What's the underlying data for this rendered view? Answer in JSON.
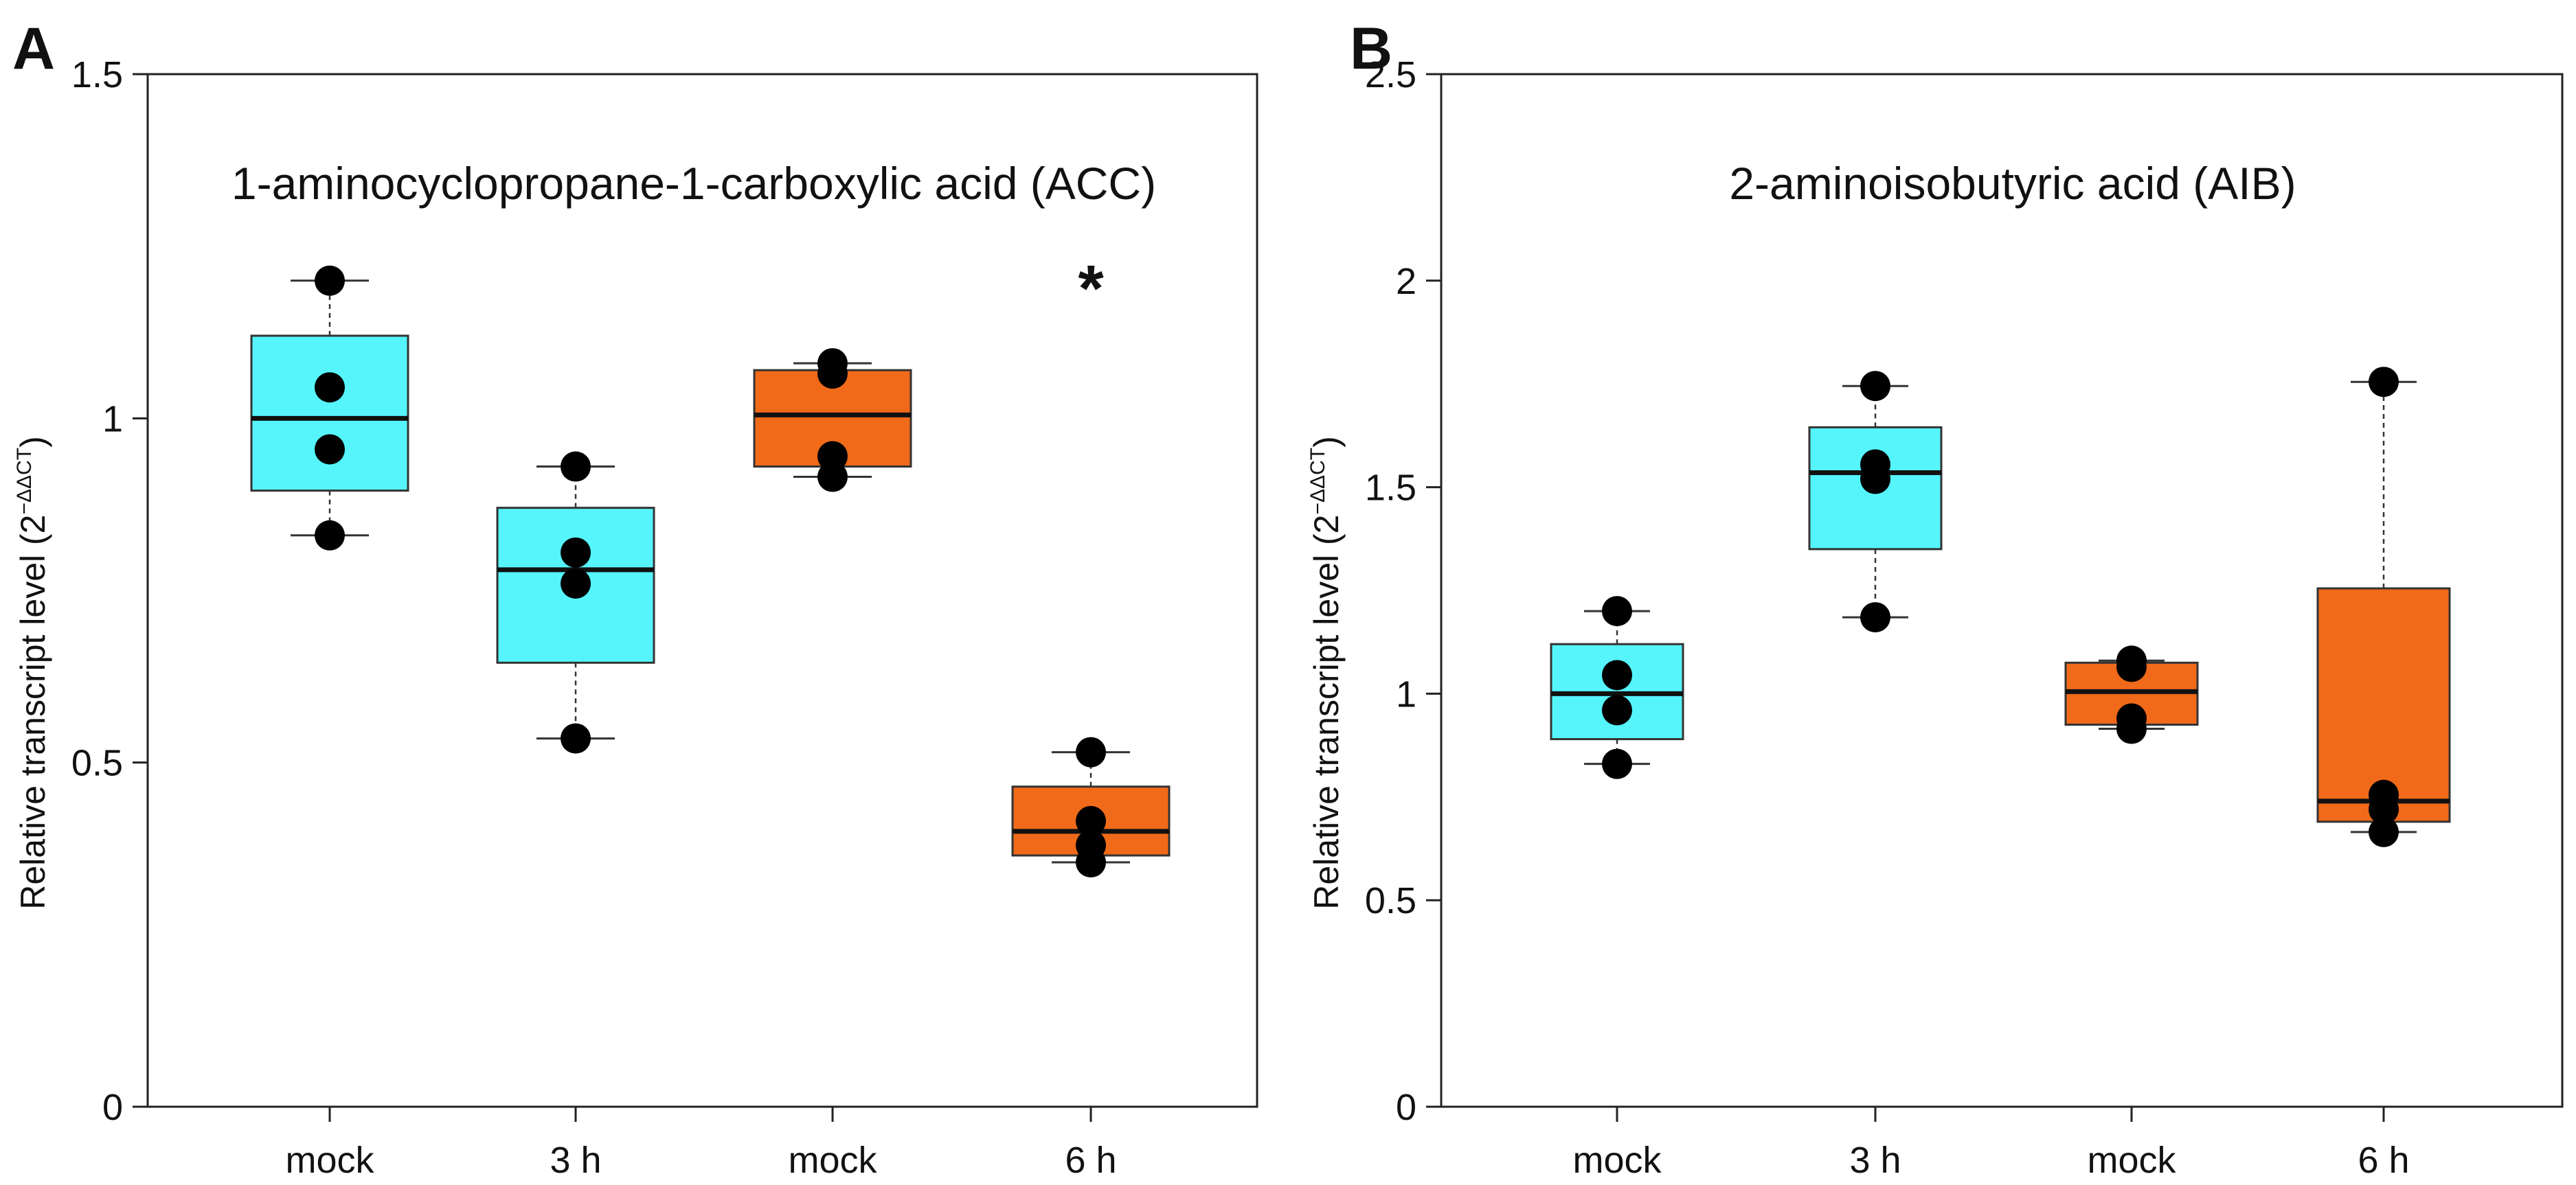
{
  "chart_data": [
    {
      "type": "box",
      "panel": "A",
      "title": "1-aminocyclopropane-1-carboxylic acid (ACC)",
      "ylabel": "Relative transcript level (2",
      "ylabel_sup": "−ΔΔCT",
      "ylabel_close": ")",
      "ylim": [
        0,
        1.5
      ],
      "yticks": [
        0,
        0.5,
        1,
        1.5
      ],
      "ytick_labels": [
        "0",
        "0.5",
        "1",
        "1.5"
      ],
      "categories": [
        "mock",
        "3 h",
        "mock",
        "6 h"
      ],
      "colors": [
        "#55f5fb",
        "#55f5fb",
        "#f06a19",
        "#f06a19"
      ],
      "annotations": [
        {
          "text": "*",
          "category_index": 3,
          "y": 1.2
        }
      ],
      "groups": [
        {
          "whisker_low": 0.83,
          "q1": 0.895,
          "median": 1.0,
          "q3": 1.12,
          "whisker_high": 1.2,
          "points": [
            0.83,
            0.955,
            1.045,
            1.2
          ]
        },
        {
          "whisker_low": 0.535,
          "q1": 0.645,
          "median": 0.78,
          "q3": 0.87,
          "whisker_high": 0.93,
          "points": [
            0.535,
            0.76,
            0.805,
            0.93
          ]
        },
        {
          "whisker_low": 0.915,
          "q1": 0.93,
          "median": 1.005,
          "q3": 1.07,
          "whisker_high": 1.08,
          "points": [
            0.915,
            0.945,
            1.065,
            1.08
          ]
        },
        {
          "whisker_low": 0.355,
          "q1": 0.365,
          "median": 0.4,
          "q3": 0.465,
          "whisker_high": 0.515,
          "points": [
            0.355,
            0.38,
            0.415,
            0.515
          ]
        }
      ]
    },
    {
      "type": "box",
      "panel": "B",
      "title": "2-aminoisobutyric acid (AIB)",
      "ylabel": "Relative transcript level (2",
      "ylabel_sup": "−ΔΔCT",
      "ylabel_close": ")",
      "ylim": [
        0,
        2.5
      ],
      "yticks": [
        0,
        0.5,
        1,
        1.5,
        2,
        2.5
      ],
      "ytick_labels": [
        "0",
        "0.5",
        "1",
        "1.5",
        "2",
        "2.5"
      ],
      "categories": [
        "mock",
        "3 h",
        "mock",
        "6 h"
      ],
      "colors": [
        "#55f5fb",
        "#55f5fb",
        "#f06a19",
        "#f06a19"
      ],
      "annotations": [],
      "groups": [
        {
          "whisker_low": 0.83,
          "q1": 0.89,
          "median": 1.0,
          "q3": 1.12,
          "whisker_high": 1.2,
          "points": [
            0.83,
            0.96,
            1.045,
            1.2
          ]
        },
        {
          "whisker_low": 1.185,
          "q1": 1.35,
          "median": 1.535,
          "q3": 1.645,
          "whisker_high": 1.745,
          "points": [
            1.185,
            1.52,
            1.555,
            1.745
          ]
        },
        {
          "whisker_low": 0.915,
          "q1": 0.925,
          "median": 1.005,
          "q3": 1.075,
          "whisker_high": 1.08,
          "points": [
            0.915,
            0.94,
            1.065,
            1.08
          ]
        },
        {
          "whisker_low": 0.665,
          "q1": 0.69,
          "median": 0.74,
          "q3": 1.255,
          "whisker_high": 1.755,
          "points": [
            0.665,
            0.72,
            0.755,
            1.755
          ]
        }
      ]
    }
  ]
}
